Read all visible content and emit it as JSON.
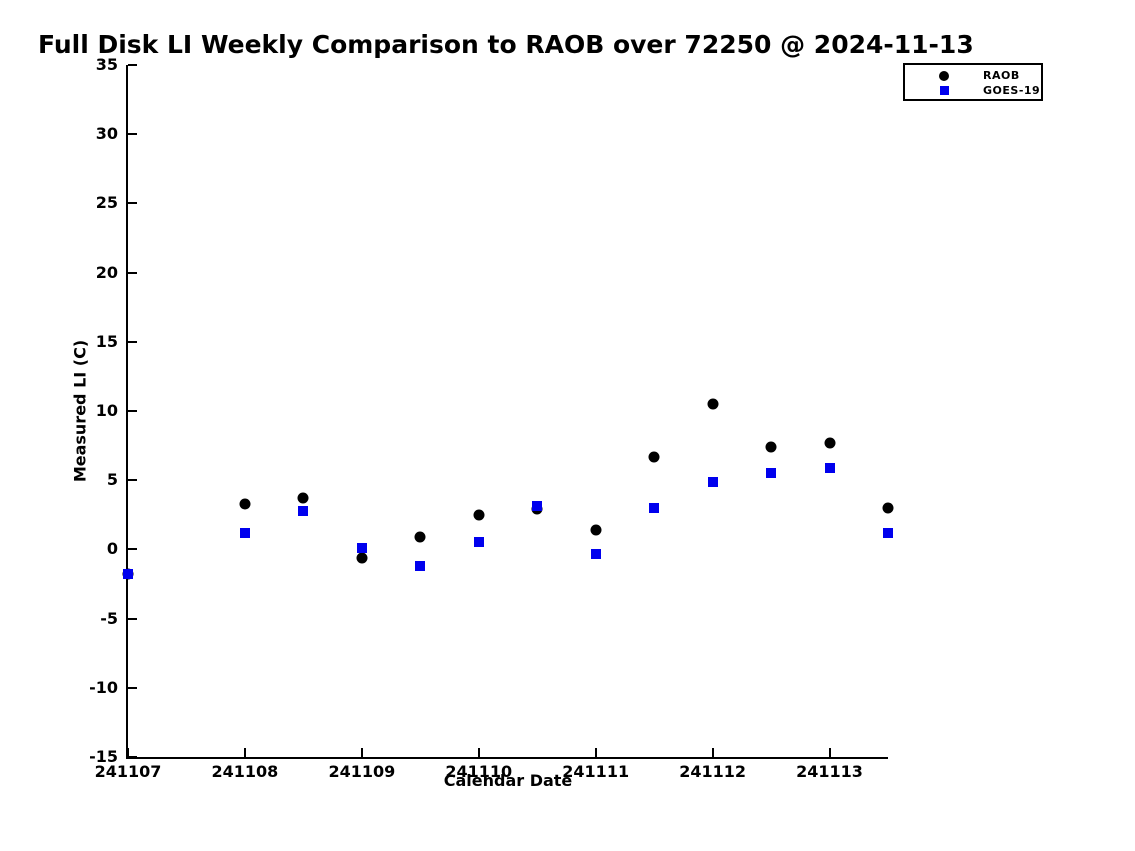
{
  "chart_data": {
    "type": "scatter",
    "title": "Full Disk LI Weekly Comparison to RAOB over 72250 @ 2024-11-13",
    "xlabel": "Calendar Date",
    "ylabel": "Measured LI (C)",
    "xlim": [
      241107,
      241113.5
    ],
    "ylim": [
      -15,
      35
    ],
    "x_ticks": [
      241107,
      241108,
      241109,
      241110,
      241111,
      241112,
      241113
    ],
    "y_ticks": [
      35,
      30,
      25,
      20,
      15,
      10,
      5,
      0,
      -5,
      -10,
      -15
    ],
    "grid": false,
    "legend_position": "upper-right",
    "x": [
      241107,
      241108,
      241108.5,
      241109,
      241109.5,
      241110,
      241110.5,
      241111,
      241111.5,
      241112,
      241112.5,
      241113,
      241113.5
    ],
    "series": [
      {
        "name": "RAOB",
        "marker": "circle",
        "color": "#000000",
        "values": [
          -1.8,
          3.3,
          3.7,
          -0.6,
          0.9,
          2.5,
          2.9,
          1.4,
          6.7,
          10.5,
          7.4,
          7.7,
          3.0
        ]
      },
      {
        "name": "GOES-19",
        "marker": "square",
        "color": "#0000ee",
        "values": [
          -1.8,
          1.2,
          2.8,
          0.1,
          -1.2,
          0.5,
          3.1,
          -0.3,
          3.0,
          4.9,
          5.5,
          5.9,
          1.2
        ]
      }
    ]
  }
}
